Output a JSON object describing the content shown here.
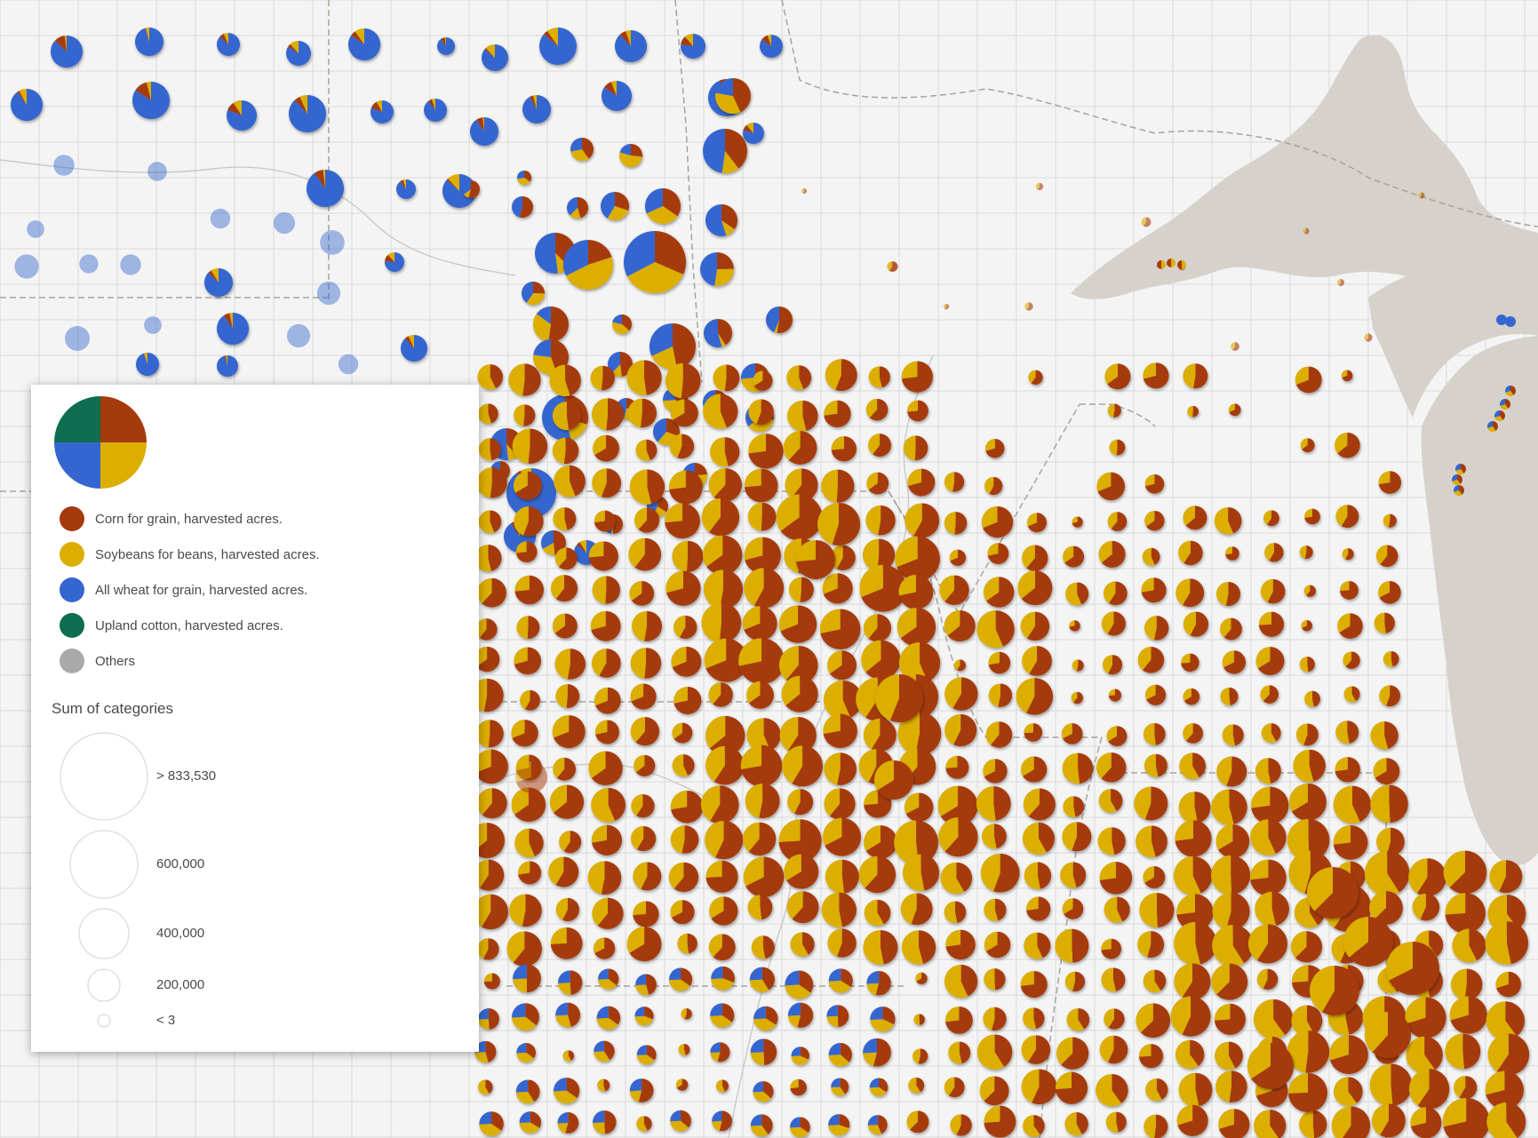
{
  "map": {
    "background_color": "#f4f4f4",
    "water_color": "#d6d2cb",
    "county_line_color": "#d8d8d8",
    "state_line_color": "#a9a39a"
  },
  "legend": {
    "categories": [
      {
        "label": "Corn for grain, harvested acres.",
        "color": "#a53a0c"
      },
      {
        "label": "Soybeans for beans, harvested acres.",
        "color": "#dcae00"
      },
      {
        "label": "All wheat for grain, harvested acres.",
        "color": "#3566cf"
      },
      {
        "label": "Upland cotton, harvested acres.",
        "color": "#0f6e4f"
      },
      {
        "label": "Others",
        "color": "#a9a9a9"
      }
    ],
    "sum_title": "Sum of categories",
    "size_classes": [
      {
        "label": "> 833,530",
        "value": 833530
      },
      {
        "label": "600,000",
        "value": 600000
      },
      {
        "label": "400,000",
        "value": 400000
      },
      {
        "label": "200,000",
        "value": 200000
      },
      {
        "label": "< 3",
        "value": 3
      }
    ]
  }
}
